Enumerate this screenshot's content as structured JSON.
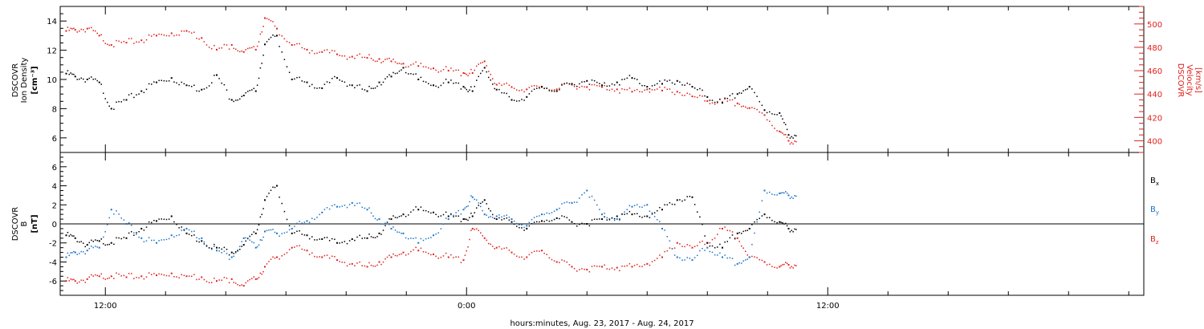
{
  "chart_data": [
    {
      "type": "scatter",
      "panel": "top",
      "ylabel_left": [
        "DSCOVR",
        "Ion Density",
        "[cm⁻³]"
      ],
      "ylabel_right": [
        "DSCOVR",
        "Velocity",
        "[km/s]"
      ],
      "ylim_left": [
        5.0,
        15.0
      ],
      "ylim_right": [
        390,
        515
      ],
      "yticks_left": [
        "6",
        "8",
        "10",
        "12",
        "14"
      ],
      "yticks_right": [
        "400",
        "420",
        "440",
        "460",
        "480",
        "500"
      ],
      "series": [
        {
          "name": "Ion Density",
          "axis": "left",
          "color": "#000000",
          "x": [
            10.7,
            11.0,
            11.4,
            11.8,
            12.2,
            12.7,
            13.2,
            13.7,
            14.2,
            14.7,
            15.2,
            15.7,
            16.2,
            16.6,
            17.0,
            17.3,
            17.7,
            18.2,
            18.7,
            19.2,
            19.7,
            20.2,
            20.7,
            21.1,
            21.5,
            21.9,
            22.4,
            22.9,
            23.4,
            23.9,
            24.2,
            24.6,
            25.0,
            25.5,
            26.0,
            26.5,
            27.0,
            27.5,
            28.0,
            28.5,
            29.0,
            29.5,
            30.0,
            30.5,
            31.0,
            31.5,
            32.0,
            32.5,
            33.0,
            33.4,
            33.9,
            34.4,
            34.7
          ],
          "y": [
            10.4,
            10.2,
            10.0,
            9.8,
            8.0,
            8.6,
            9.2,
            9.8,
            10.1,
            9.6,
            9.3,
            10.3,
            8.6,
            8.9,
            9.2,
            12.4,
            13.0,
            10.0,
            9.8,
            9.4,
            10.1,
            9.6,
            9.2,
            9.8,
            10.2,
            10.8,
            10.0,
            9.6,
            9.8,
            9.5,
            9.2,
            10.8,
            9.3,
            8.6,
            8.8,
            9.5,
            9.2,
            9.7,
            9.9,
            9.6,
            9.8,
            10.1,
            9.5,
            9.7,
            9.9,
            9.5,
            8.8,
            8.4,
            9.0,
            9.5,
            7.9,
            7.7,
            6.2
          ]
        },
        {
          "name": "Velocity",
          "axis": "right",
          "color": "#e0201b",
          "x": [
            10.7,
            11.0,
            11.4,
            11.8,
            12.2,
            12.7,
            13.2,
            13.7,
            14.2,
            14.7,
            15.2,
            15.7,
            16.2,
            16.6,
            17.0,
            17.3,
            17.7,
            18.2,
            18.7,
            19.2,
            19.7,
            20.2,
            20.7,
            21.1,
            21.5,
            21.9,
            22.4,
            22.9,
            23.4,
            23.9,
            24.2,
            24.6,
            25.0,
            25.5,
            26.0,
            26.5,
            27.0,
            27.5,
            28.0,
            28.5,
            29.0,
            29.5,
            30.0,
            30.5,
            31.0,
            31.5,
            32.0,
            32.5,
            33.0,
            33.4,
            33.9,
            34.4,
            34.7
          ],
          "y": [
            494,
            495,
            496,
            490,
            482,
            484,
            486,
            490,
            492,
            494,
            488,
            478,
            482,
            476,
            478,
            505,
            496,
            482,
            478,
            476,
            474,
            472,
            471,
            470,
            468,
            466,
            464,
            462,
            460,
            458,
            458,
            468,
            448,
            446,
            444,
            446,
            444,
            448,
            446,
            446,
            444,
            442,
            444,
            443,
            442,
            438,
            434,
            433,
            432,
            428,
            422,
            408,
            400
          ]
        }
      ]
    },
    {
      "type": "scatter",
      "panel": "bottom",
      "ylabel_left": [
        "DSCOVR",
        "B",
        "[nT]"
      ],
      "ylim": [
        -7.5,
        7.5
      ],
      "yticks": [
        "-6",
        "-4",
        "-2",
        "0",
        "2",
        "4",
        "6"
      ],
      "x_tick_labels": [
        "12:00",
        "0:00",
        "12:00"
      ],
      "xlim_hours": [
        10.5,
        46.5
      ],
      "xlabel": "hours:minutes, Aug. 23, 2017 - Aug. 24, 2017",
      "series": [
        {
          "name": "Bx",
          "color": "#000000",
          "x": [
            10.7,
            11.0,
            11.4,
            11.8,
            12.2,
            12.7,
            13.2,
            13.7,
            14.2,
            14.7,
            15.2,
            15.7,
            16.2,
            16.6,
            17.0,
            17.3,
            17.7,
            18.2,
            18.7,
            19.2,
            19.7,
            20.2,
            20.7,
            21.1,
            21.5,
            21.9,
            22.4,
            22.9,
            23.4,
            23.9,
            24.2,
            24.6,
            25.0,
            25.5,
            26.0,
            26.5,
            27.0,
            27.5,
            28.0,
            28.5,
            29.0,
            29.5,
            30.0,
            30.5,
            31.0,
            31.5,
            32.0,
            32.5,
            33.0,
            33.4,
            33.9,
            34.4,
            34.7
          ],
          "y": [
            -1.2,
            -1.5,
            -2.2,
            -1.8,
            -2.0,
            -1.5,
            -0.5,
            0.3,
            0.8,
            -1.0,
            -1.8,
            -2.5,
            -3.0,
            -2.2,
            -1.0,
            2.5,
            4.0,
            -1.0,
            -1.2,
            -1.6,
            -2.0,
            -1.6,
            -1.5,
            -1.0,
            0.5,
            1.0,
            1.5,
            1.2,
            0.8,
            0.5,
            0.8,
            2.5,
            0.5,
            0.2,
            -0.5,
            0.3,
            0.6,
            0.2,
            0.0,
            0.5,
            0.8,
            1.0,
            0.8,
            1.5,
            2.5,
            2.8,
            -2.0,
            -2.5,
            -1.0,
            -0.5,
            1.0,
            0.2,
            -0.5
          ]
        },
        {
          "name": "By",
          "color": "#1a73c8",
          "x": [
            10.7,
            11.0,
            11.4,
            11.8,
            12.2,
            12.7,
            13.2,
            13.7,
            14.2,
            14.7,
            15.2,
            15.7,
            16.2,
            16.6,
            17.0,
            17.3,
            17.7,
            18.2,
            18.7,
            19.2,
            19.7,
            20.2,
            20.7,
            21.1,
            21.5,
            21.9,
            22.4,
            22.9,
            23.4,
            23.9,
            24.2,
            24.6,
            25.0,
            25.5,
            26.0,
            26.5,
            27.0,
            27.5,
            28.0,
            28.5,
            29.0,
            29.5,
            30.0,
            30.5,
            31.0,
            31.5,
            32.0,
            32.5,
            33.0,
            33.4,
            33.9,
            34.4,
            34.7
          ],
          "y": [
            -3.5,
            -3.0,
            -2.8,
            -2.5,
            1.5,
            0.0,
            -1.5,
            -2.0,
            -1.2,
            -0.5,
            -1.5,
            -2.8,
            -3.5,
            -1.5,
            -2.5,
            -0.8,
            -1.0,
            -0.5,
            0.3,
            1.2,
            1.8,
            2.2,
            1.5,
            0.5,
            -0.5,
            -1.0,
            -2.0,
            -1.2,
            0.5,
            1.5,
            2.8,
            1.0,
            0.8,
            0.5,
            -0.2,
            1.0,
            1.5,
            2.2,
            3.5,
            1.0,
            0.5,
            1.8,
            2.0,
            -0.5,
            -3.5,
            -3.8,
            -2.5,
            -3.5,
            -4.2,
            -3.5,
            3.5,
            3.2,
            3.0
          ]
        },
        {
          "name": "Bz",
          "color": "#e0201b",
          "x": [
            10.7,
            11.0,
            11.4,
            11.8,
            12.2,
            12.7,
            13.2,
            13.7,
            14.2,
            14.7,
            15.2,
            15.7,
            16.2,
            16.6,
            17.0,
            17.3,
            17.7,
            18.2,
            18.7,
            19.2,
            19.7,
            20.2,
            20.7,
            21.1,
            21.5,
            21.9,
            22.4,
            22.9,
            23.4,
            23.9,
            24.2,
            24.6,
            25.0,
            25.5,
            26.0,
            26.5,
            27.0,
            27.5,
            28.0,
            28.5,
            29.0,
            29.5,
            30.0,
            30.5,
            31.0,
            31.5,
            32.0,
            32.5,
            33.0,
            33.4,
            33.9,
            34.4,
            34.7
          ],
          "y": [
            -6.0,
            -6.0,
            -5.8,
            -5.5,
            -5.5,
            -5.6,
            -5.5,
            -5.4,
            -5.2,
            -5.5,
            -5.6,
            -6.0,
            -5.8,
            -6.5,
            -5.8,
            -4.5,
            -3.5,
            -2.5,
            -2.8,
            -3.5,
            -3.8,
            -4.2,
            -4.5,
            -4.0,
            -3.5,
            -3.0,
            -2.8,
            -3.2,
            -3.5,
            -3.8,
            -0.5,
            -1.5,
            -2.5,
            -3.0,
            -3.5,
            -2.8,
            -4.0,
            -4.5,
            -4.8,
            -4.5,
            -4.6,
            -4.5,
            -4.2,
            -3.5,
            -2.0,
            -2.5,
            -2.0,
            -0.5,
            -1.5,
            -3.5,
            -4.0,
            -4.5,
            -4.3
          ]
        }
      ]
    }
  ],
  "legend": [
    {
      "label": "Bx",
      "color": "#000000"
    },
    {
      "label": "By",
      "color": "#1a73c8"
    },
    {
      "label": "Bz",
      "color": "#e0201b"
    }
  ]
}
